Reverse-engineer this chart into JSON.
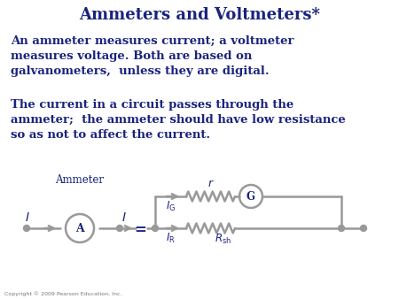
{
  "title": "Ammeters and Voltmeters*",
  "title_color": "#1a237e",
  "title_fontsize": 13,
  "body_color": "#1a237e",
  "body_fontsize": 9.5,
  "para1": "An ammeter measures current; a voltmeter\nmeasures voltage. Both are based on\ngalvanometers,  unless they are digital.",
  "para2": "The current in a circuit passes through the\nammeter;  the ammeter should have low resistance\nso as not to affect the current.",
  "copyright": "Copyright © 2009 Pearson Education, Inc.",
  "bg_color": "#ffffff",
  "circuit_color": "#999999",
  "text_dark": "#1a237e"
}
